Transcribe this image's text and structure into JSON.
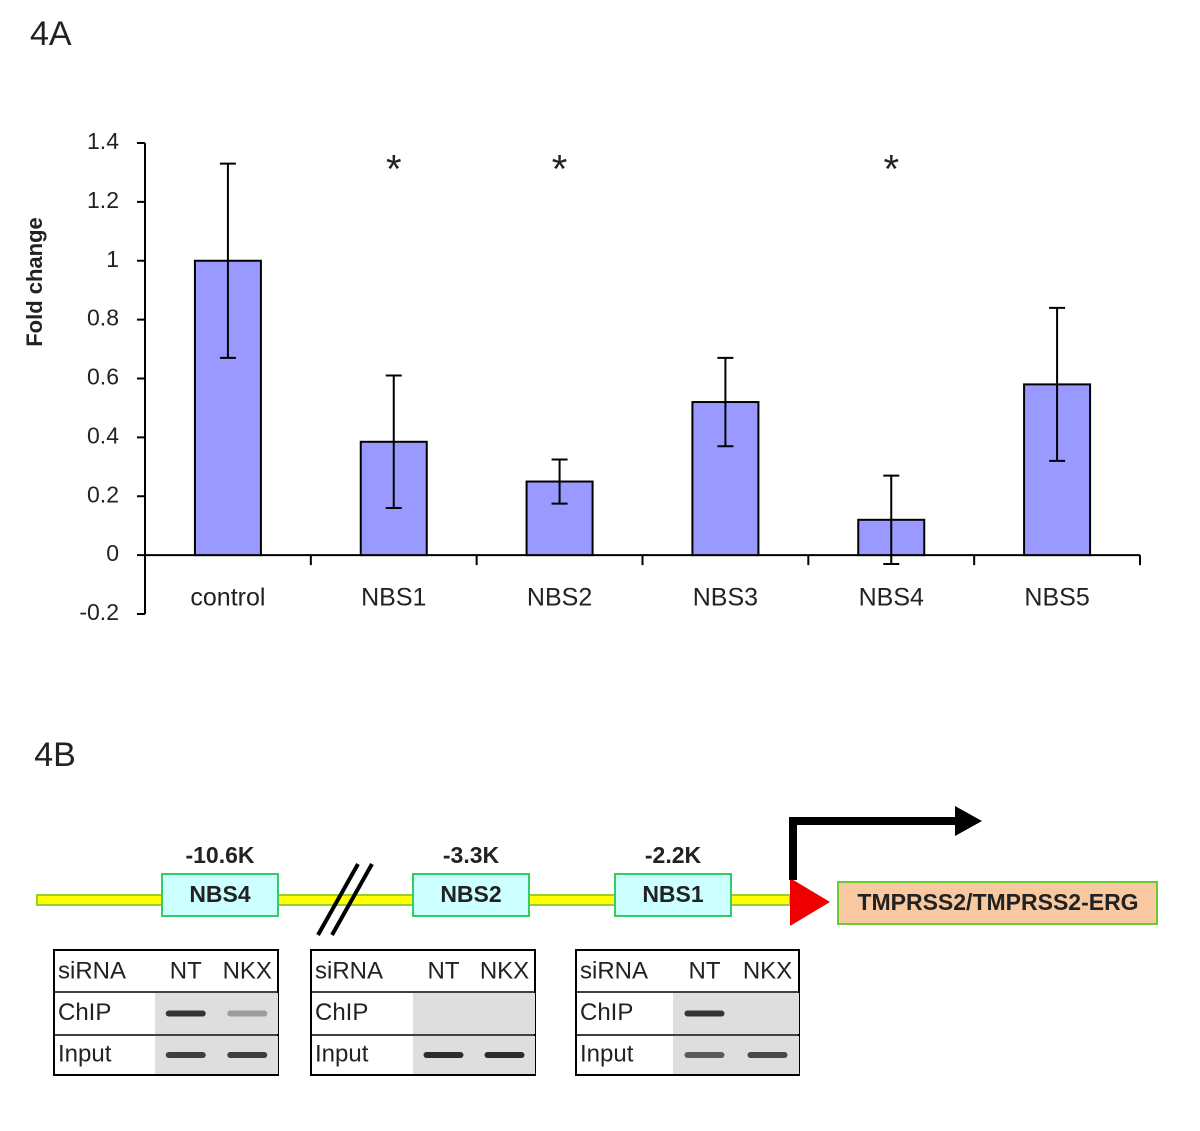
{
  "panel_a_label": "4A",
  "chart_data": {
    "type": "bar",
    "y_label": "Fold change",
    "categories": [
      "control",
      "NBS1",
      "NBS2",
      "NBS3",
      "NBS4",
      "NBS5"
    ],
    "values": [
      1.0,
      0.385,
      0.25,
      0.52,
      0.12,
      0.58
    ],
    "errors": [
      0.33,
      0.225,
      0.075,
      0.15,
      0.15,
      0.26
    ],
    "significance": [
      null,
      "*",
      "*",
      null,
      "*",
      null
    ],
    "color": "#9999ff",
    "ylim": [
      -0.2,
      1.4
    ],
    "yticks": [
      -0.2,
      0,
      0.2,
      0.4,
      0.6,
      0.8,
      1,
      1.2,
      1.4
    ]
  },
  "panel_b_label": "4B",
  "diagram": {
    "sites": [
      {
        "label": "NBS4",
        "position": "-10.6K"
      },
      {
        "label": "NBS2",
        "position": "-3.3K"
      },
      {
        "label": "NBS1",
        "position": "-2.2K"
      }
    ],
    "gene": "TMPRSS2/TMPRSS2-ERG",
    "gels": [
      {
        "header": [
          "siRNA",
          "NT",
          "NKX"
        ],
        "rows": [
          "ChIP",
          "Input"
        ]
      },
      {
        "header": [
          "siRNA",
          "NT",
          "NKX"
        ],
        "rows": [
          "ChIP",
          "Input"
        ]
      },
      {
        "header": [
          "siRNA",
          "NT",
          "NKX"
        ],
        "rows": [
          "ChIP",
          "Input"
        ]
      }
    ]
  }
}
